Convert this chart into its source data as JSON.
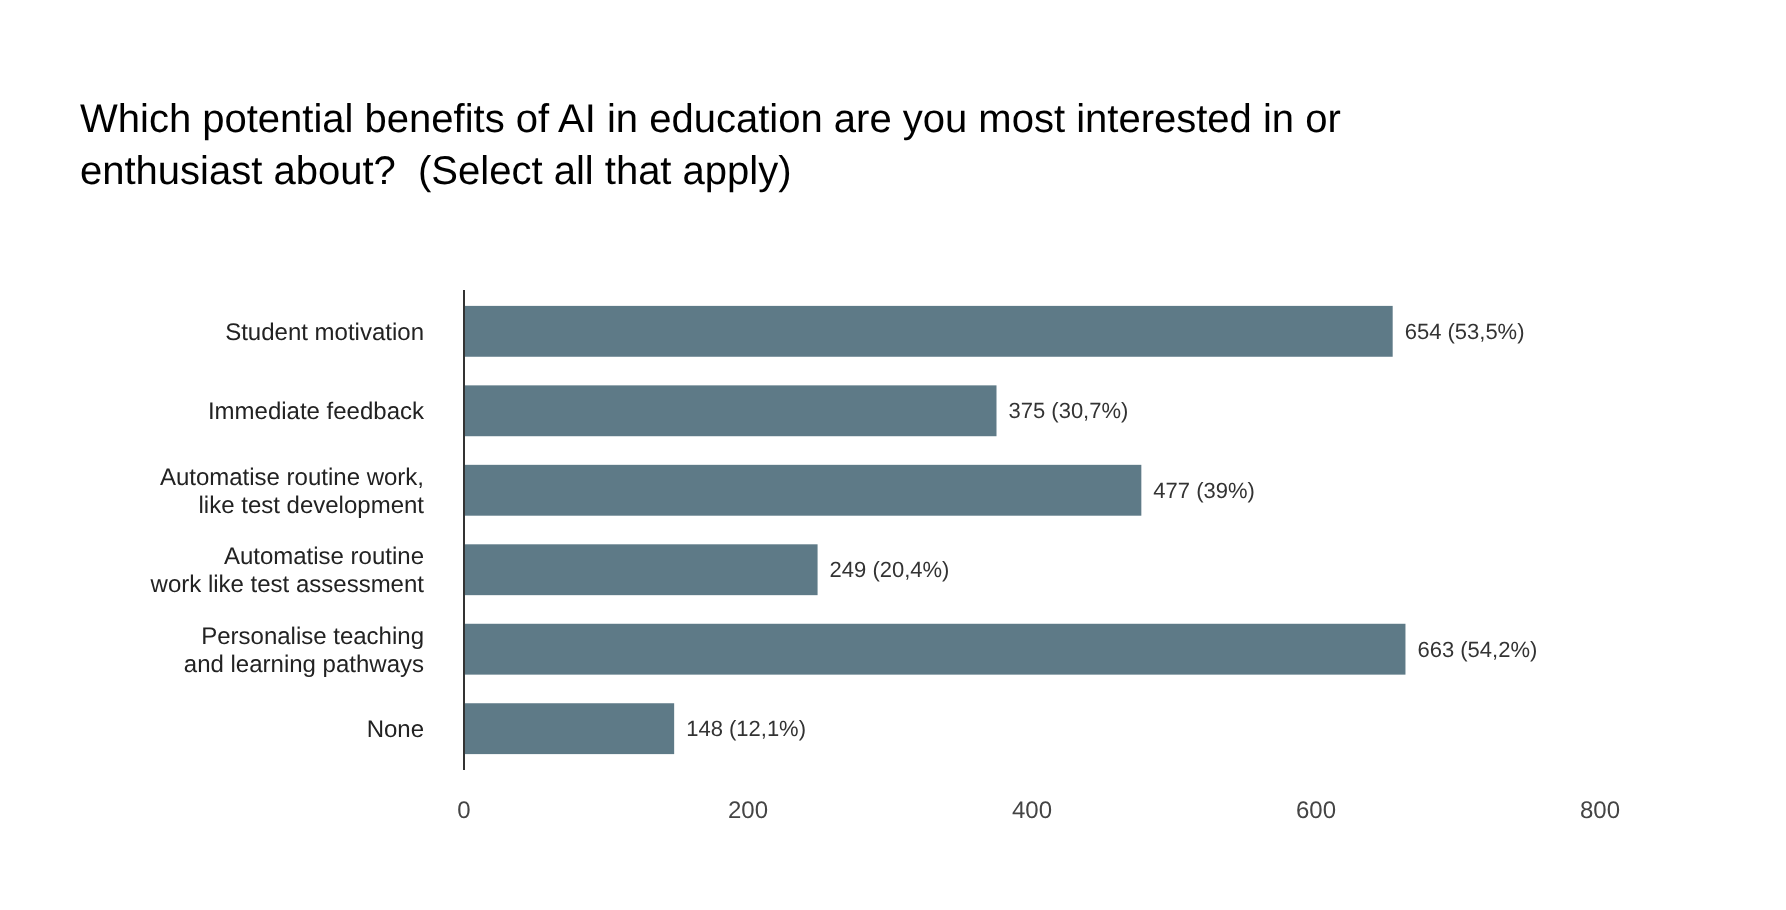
{
  "chart_data": {
    "type": "bar",
    "orientation": "horizontal",
    "title": "Which potential benefits of AI in education are you most interested in or enthusiast about?  (Select all that apply)",
    "categories": [
      "Student motivation",
      "Immediate feedback",
      "Automatise routine work,\nlike test development",
      "Automatise routine\nwork like test assessment",
      "Personalise teaching\nand learning pathways",
      "None"
    ],
    "values": [
      654,
      375,
      477,
      249,
      663,
      148
    ],
    "value_labels": [
      "654 (53,5%)",
      "375 (30,7%)",
      "477 (39%)",
      "249 (20,4%)",
      "663 (54,2%)",
      "148 (12,1%)"
    ],
    "color": "#5e7a87",
    "xlim": [
      0,
      800
    ],
    "xticks": [
      0,
      200,
      400,
      600,
      800
    ],
    "grid": false
  }
}
